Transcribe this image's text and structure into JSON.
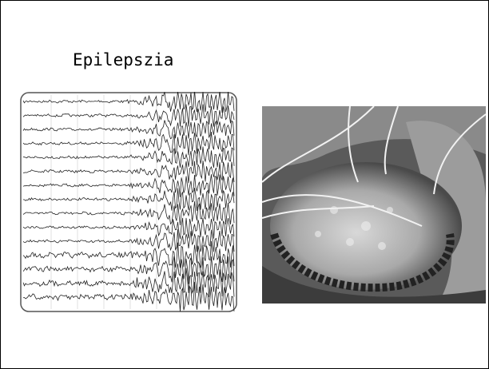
{
  "slide": {
    "title": "Epilepszia"
  }
}
